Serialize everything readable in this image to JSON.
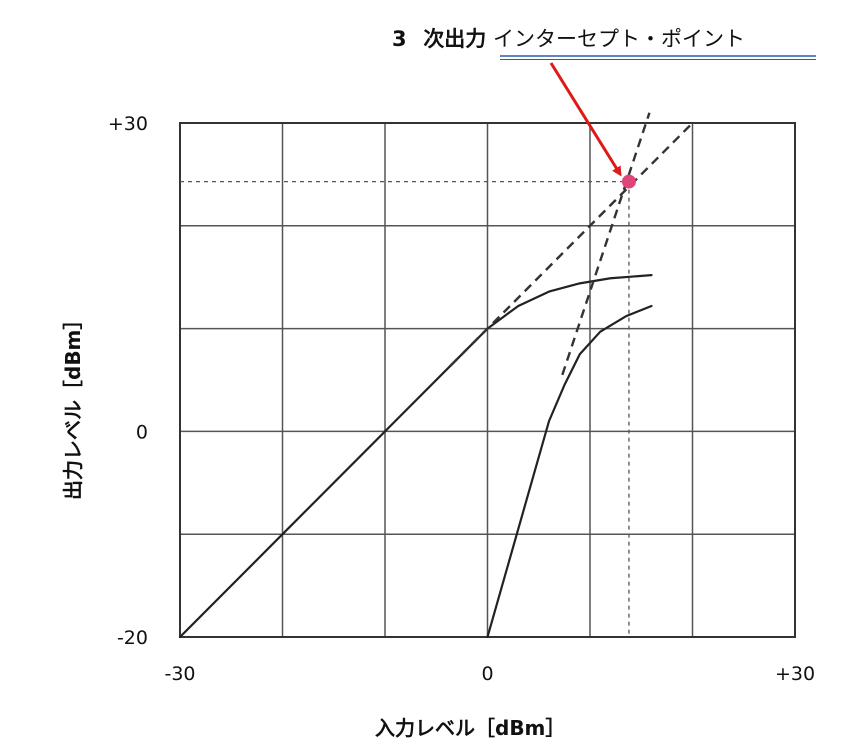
{
  "chart_data": {
    "type": "line",
    "xlabel": "入力レベル［dBm］",
    "ylabel": "出力レベル［dBm］",
    "xlim": [
      -30,
      30
    ],
    "ylim": [
      -20,
      30
    ],
    "x_tick_labels": [
      {
        "value": -30,
        "label": "-30"
      },
      {
        "value": 0,
        "label": "0"
      },
      {
        "value": 30,
        "label": "+30"
      }
    ],
    "y_tick_labels": [
      {
        "value": 30,
        "label": "+30"
      },
      {
        "value": 0,
        "label": "0"
      },
      {
        "value": -20,
        "label": "-20"
      }
    ],
    "grid": true,
    "grid_step_x": 10,
    "grid_step_y": 10,
    "series": [
      {
        "style": "solid",
        "color": "#222222",
        "points": [
          [
            -30,
            -20
          ],
          [
            -20,
            -10
          ],
          [
            -10,
            0
          ],
          [
            -3,
            7
          ],
          [
            0,
            10
          ],
          [
            3,
            12.2
          ],
          [
            6,
            13.6
          ],
          [
            9,
            14.4
          ],
          [
            12,
            14.9
          ],
          [
            16,
            15.2
          ]
        ]
      },
      {
        "style": "solid",
        "color": "#222222",
        "points": [
          [
            0,
            -20
          ],
          [
            2,
            -13
          ],
          [
            4,
            -6
          ],
          [
            6,
            1
          ],
          [
            7.5,
            4.5
          ],
          [
            9,
            7.5
          ],
          [
            11,
            9.7
          ],
          [
            13.5,
            11.2
          ],
          [
            16,
            12.2
          ]
        ]
      },
      {
        "style": "dashed",
        "color": "#333333",
        "points": [
          [
            -3.6,
            6.4
          ],
          [
            20,
            30
          ]
        ]
      },
      {
        "style": "dashed",
        "color": "#333333",
        "points": [
          [
            7.3,
            5.5
          ],
          [
            15.8,
            31
          ]
        ]
      },
      {
        "style": "dotted-guide",
        "color": "#555555",
        "points": [
          [
            -30,
            24.3
          ],
          [
            13.8,
            24.3
          ]
        ]
      },
      {
        "style": "dotted-guide",
        "color": "#555555",
        "points": [
          [
            13.8,
            24.3
          ],
          [
            13.8,
            -20
          ]
        ]
      }
    ],
    "intercept_point": {
      "x": 13.8,
      "y": 24.3,
      "color": "#e0457a"
    },
    "annotation": {
      "prefix": "3",
      "bold_text": "次出力",
      "underlined_text": "インターセプト・ポイント",
      "arrow_color": "#e01818",
      "underline_color": "#2b5cb8"
    }
  }
}
